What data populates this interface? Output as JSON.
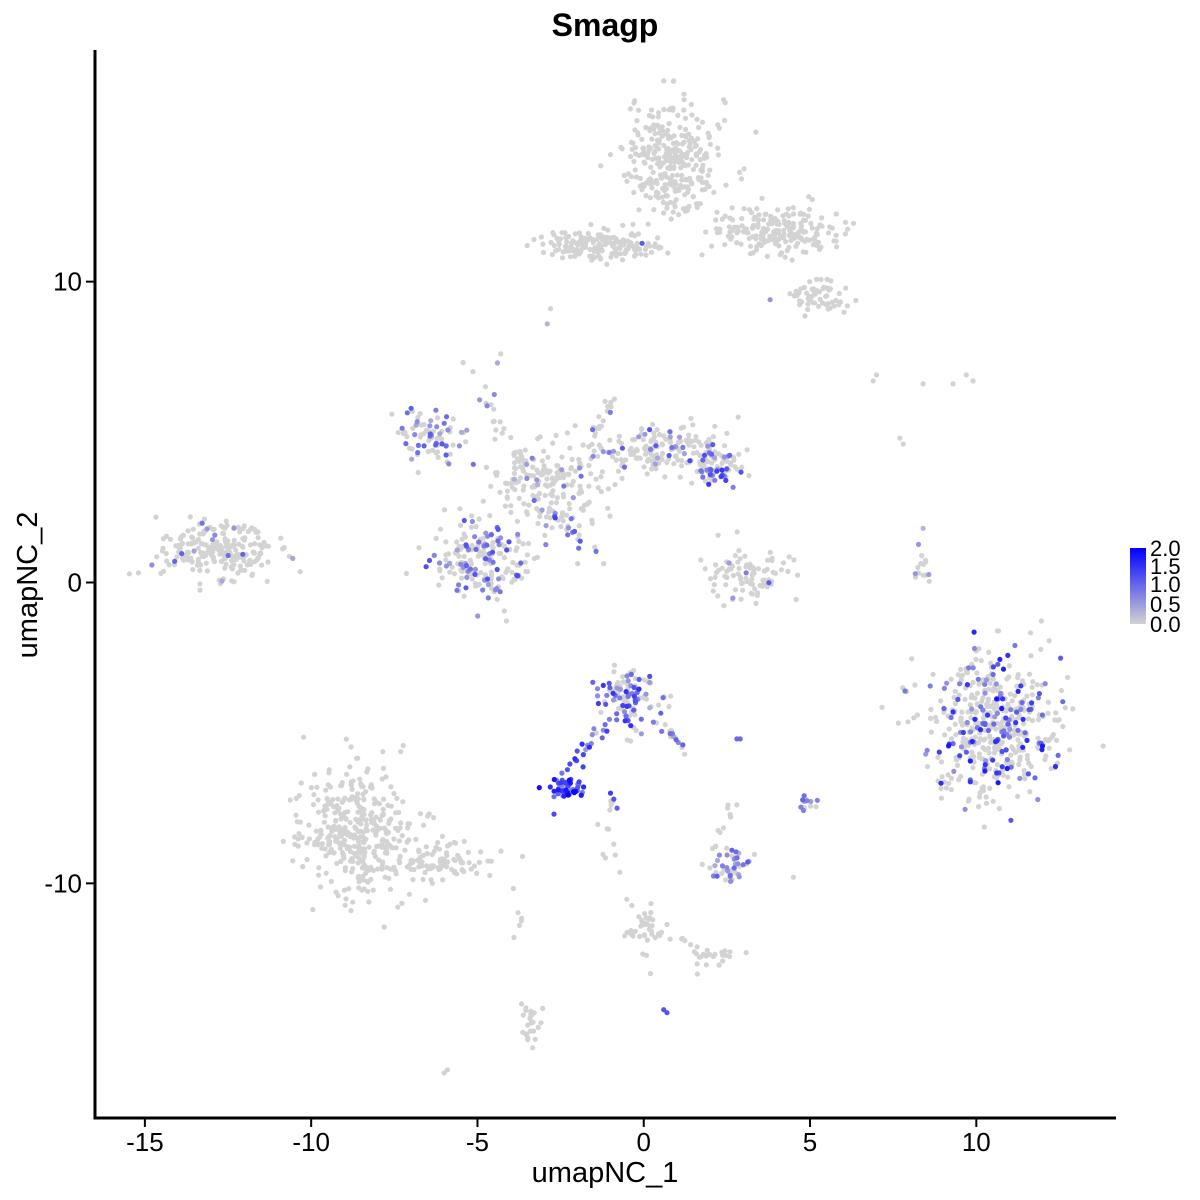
{
  "chart_data": {
    "type": "scatter",
    "title": "Smagp",
    "xlabel": "umapNC_1",
    "ylabel": "umapNC_2",
    "xlim": [
      -16.5,
      14.2
    ],
    "ylim": [
      -17.8,
      17.7
    ],
    "x_ticks": [
      -15,
      -10,
      -5,
      0,
      5,
      10
    ],
    "x_tick_labels": [
      "-15",
      "-10",
      "-5",
      "0",
      "5",
      "10"
    ],
    "y_ticks": [
      -10,
      0,
      10
    ],
    "y_tick_labels": [
      "-10",
      "0",
      "10"
    ],
    "grid": false,
    "legend": {
      "position": "right",
      "min": 0.0,
      "max": 2.0,
      "labels": [
        "2.0",
        "1.5",
        "1.0",
        "0.5",
        "0.0"
      ],
      "color_low": "#D3D3D3",
      "color_high": "#0000FF"
    },
    "clusters": [
      {
        "cx": 0.9,
        "cy": 14.0,
        "rx": 1.3,
        "ry": 1.8,
        "n": 320,
        "expr_frac": 0.0,
        "expr_max": 0
      },
      {
        "cx": 4.0,
        "cy": 11.7,
        "rx": 1.7,
        "ry": 0.7,
        "n": 200,
        "expr_frac": 0.0,
        "expr_max": 0
      },
      {
        "cx": -1.5,
        "cy": 11.2,
        "rx": 1.4,
        "ry": 0.5,
        "n": 140,
        "expr_frac": 0.0,
        "expr_max": 0
      },
      {
        "cx": 5.3,
        "cy": 9.5,
        "rx": 0.8,
        "ry": 0.5,
        "n": 60,
        "expr_frac": 0.02,
        "expr_max": 1.2
      },
      {
        "cx": -6.4,
        "cy": 4.9,
        "rx": 0.9,
        "ry": 0.8,
        "n": 80,
        "expr_frac": 0.35,
        "expr_max": 1.2
      },
      {
        "cx": -2.8,
        "cy": 3.4,
        "rx": 1.6,
        "ry": 1.2,
        "n": 180,
        "expr_frac": 0.08,
        "expr_max": 1.0
      },
      {
        "cx": -4.8,
        "cy": 0.7,
        "rx": 1.3,
        "ry": 1.2,
        "n": 200,
        "expr_frac": 0.35,
        "expr_max": 1.3
      },
      {
        "cx": 0.7,
        "cy": 4.4,
        "rx": 1.7,
        "ry": 0.7,
        "n": 150,
        "expr_frac": 0.15,
        "expr_max": 1.2
      },
      {
        "cx": 2.1,
        "cy": 3.9,
        "rx": 0.7,
        "ry": 0.6,
        "n": 70,
        "expr_frac": 0.5,
        "expr_max": 1.5
      },
      {
        "cx": -12.9,
        "cy": 1.1,
        "rx": 1.6,
        "ry": 0.8,
        "n": 230,
        "expr_frac": 0.08,
        "expr_max": 1.2
      },
      {
        "cx": 3.2,
        "cy": 0.3,
        "rx": 1.2,
        "ry": 0.8,
        "n": 90,
        "expr_frac": 0.06,
        "expr_max": 1.2
      },
      {
        "cx": -0.5,
        "cy": -3.9,
        "rx": 0.8,
        "ry": 0.9,
        "n": 110,
        "expr_frac": 0.55,
        "expr_max": 1.6
      },
      {
        "cx": -2.3,
        "cy": -6.9,
        "rx": 0.5,
        "ry": 0.25,
        "n": 45,
        "expr_frac": 0.95,
        "expr_max": 2.0
      },
      {
        "cx": 2.5,
        "cy": -9.4,
        "rx": 0.6,
        "ry": 0.5,
        "n": 45,
        "expr_frac": 0.45,
        "expr_max": 1.1
      },
      {
        "cx": 10.5,
        "cy": -4.8,
        "rx": 1.8,
        "ry": 2.1,
        "n": 500,
        "expr_frac": 0.28,
        "expr_max": 1.8
      },
      {
        "cx": -8.6,
        "cy": -8.3,
        "rx": 1.6,
        "ry": 1.9,
        "n": 380,
        "expr_frac": 0.0,
        "expr_max": 0
      },
      {
        "cx": -6.2,
        "cy": -9.3,
        "rx": 1.8,
        "ry": 0.6,
        "n": 90,
        "expr_frac": 0.0,
        "expr_max": 0
      },
      {
        "cx": 0.0,
        "cy": -11.4,
        "rx": 0.4,
        "ry": 0.8,
        "n": 35,
        "expr_frac": 0.0,
        "expr_max": 0
      },
      {
        "cx": 2.1,
        "cy": -12.4,
        "rx": 0.6,
        "ry": 0.3,
        "n": 25,
        "expr_frac": 0.0,
        "expr_max": 0
      },
      {
        "cx": -3.4,
        "cy": -14.7,
        "rx": 0.3,
        "ry": 0.7,
        "n": 25,
        "expr_frac": 0.0,
        "expr_max": 0
      },
      {
        "cx": 5.0,
        "cy": -7.3,
        "rx": 0.25,
        "ry": 0.25,
        "n": 12,
        "expr_frac": 0.5,
        "expr_max": 1.2
      },
      {
        "cx": 8.3,
        "cy": 0.4,
        "rx": 0.3,
        "ry": 0.6,
        "n": 14,
        "expr_frac": 0.2,
        "expr_max": 1.0
      }
    ],
    "trails": [
      {
        "x1": -5.5,
        "y1": 7.5,
        "x2": -3.6,
        "y2": 3.5,
        "n": 25,
        "expr_frac": 0.1,
        "expr_max": 0.8
      },
      {
        "x1": -1.0,
        "y1": 6.3,
        "x2": -1.8,
        "y2": 3.6,
        "n": 25,
        "expr_frac": 0.2,
        "expr_max": 1.0
      },
      {
        "x1": -3.0,
        "y1": 2.5,
        "x2": -1.3,
        "y2": 0.7,
        "n": 20,
        "expr_frac": 0.5,
        "expr_max": 1.4
      },
      {
        "x1": -2.5,
        "y1": -6.7,
        "x2": -1.2,
        "y2": -4.6,
        "n": 22,
        "expr_frac": 0.9,
        "expr_max": 1.8
      },
      {
        "x1": -0.3,
        "y1": -3.8,
        "x2": 1.3,
        "y2": -5.6,
        "n": 20,
        "expr_frac": 0.4,
        "expr_max": 1.1
      },
      {
        "x1": 0.5,
        "y1": 11.1,
        "x2": -0.8,
        "y2": 11.0,
        "n": 18,
        "expr_frac": 0.05,
        "expr_max": 1.5
      },
      {
        "x1": 2.8,
        "y1": -6.9,
        "x2": 2.2,
        "y2": -8.8,
        "n": 10,
        "expr_frac": 0.0,
        "expr_max": 0
      },
      {
        "x1": -1.0,
        "y1": -10.0,
        "x2": -1.1,
        "y2": -7.2,
        "n": 12,
        "expr_frac": 0.0,
        "expr_max": 0
      },
      {
        "x1": 0.4,
        "y1": -11.6,
        "x2": 1.9,
        "y2": -12.2,
        "n": 10,
        "expr_frac": 0.0,
        "expr_max": 0
      },
      {
        "x1": -3.8,
        "y1": -10.0,
        "x2": -3.8,
        "y2": -12.0,
        "n": 5,
        "expr_frac": 0.0,
        "expr_max": 0
      }
    ],
    "singles": [
      [
        -3.5,
        11.2,
        0
      ],
      [
        -3.3,
        11.4,
        0
      ],
      [
        -2.8,
        9.1,
        0
      ],
      [
        -2.9,
        8.6,
        0.3
      ],
      [
        -4.4,
        7.3,
        0.4
      ],
      [
        -4.3,
        7.6,
        0
      ],
      [
        7.0,
        6.9,
        0
      ],
      [
        8.4,
        6.6,
        0
      ],
      [
        9.3,
        6.6,
        0
      ],
      [
        9.7,
        6.9,
        0
      ],
      [
        9.9,
        6.7,
        0
      ],
      [
        7.7,
        4.8,
        0
      ],
      [
        7.8,
        4.6,
        0
      ],
      [
        8.4,
        1.8,
        0.3
      ],
      [
        2.8,
        -5.2,
        1.0
      ],
      [
        2.9,
        -5.2,
        1.0
      ],
      [
        0.6,
        -14.2,
        1.2
      ],
      [
        0.7,
        -14.3,
        1.2
      ],
      [
        -6.0,
        -16.3,
        0
      ],
      [
        -5.9,
        -16.2,
        0
      ],
      [
        -1.0,
        -7.0,
        1.4
      ],
      [
        -0.9,
        -7.2,
        1.2
      ],
      [
        -0.8,
        -7.5,
        1.1
      ],
      [
        4.5,
        -9.8,
        0
      ],
      [
        -3.9,
        -11.8,
        0
      ],
      [
        -0.9,
        -8.7,
        0
      ],
      [
        0.2,
        -13.0,
        0
      ],
      [
        -2.7,
        -7.7,
        1.3
      ],
      [
        6.9,
        6.7,
        0
      ],
      [
        3.8,
        9.4,
        0.6
      ]
    ]
  }
}
